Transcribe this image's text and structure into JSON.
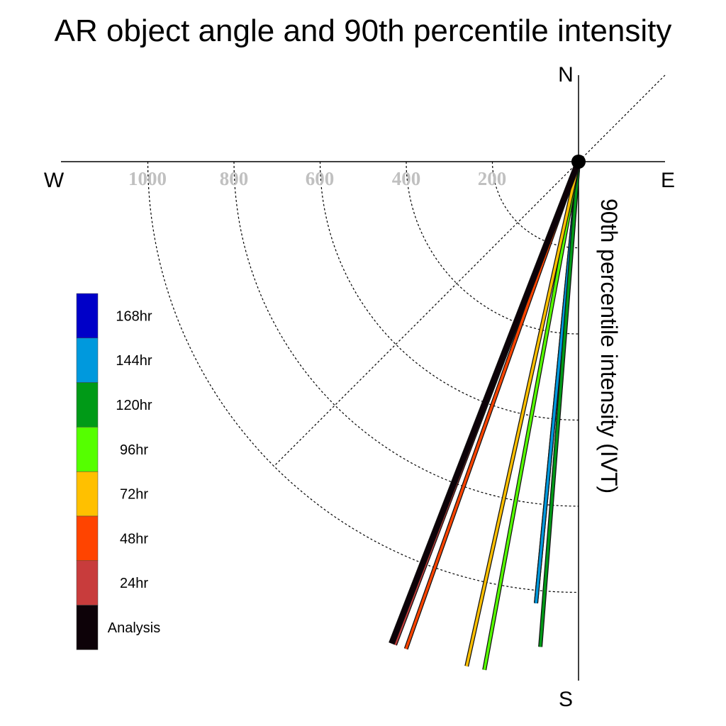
{
  "chart_data": {
    "type": "polar-line",
    "title": "AR object angle and 90th percentile intensity",
    "ylabel": "90th percentile intensity (IVT)",
    "compass": {
      "north": "N",
      "south": "S",
      "east": "E",
      "west": "W"
    },
    "radial_ticks": [
      "200",
      "400",
      "600",
      "800",
      "1000"
    ],
    "radial_tick_values": [
      200,
      400,
      600,
      800,
      1000
    ],
    "radial_max": 1200,
    "grid": true,
    "legend_position": "left",
    "series": [
      {
        "name": "Analysis",
        "color": "#0d0208",
        "angle_deg": 201.2,
        "intensity": 1200
      },
      {
        "name": "24hr",
        "color": "#c83c3c",
        "angle_deg": 200.8,
        "intensity": 1200
      },
      {
        "name": "48hr",
        "color": "#ff4400",
        "angle_deg": 199.5,
        "intensity": 1200
      },
      {
        "name": "72hr",
        "color": "#ffc000",
        "angle_deg": 192.5,
        "intensity": 1200
      },
      {
        "name": "96hr",
        "color": "#55ff00",
        "angle_deg": 190.5,
        "intensity": 1200
      },
      {
        "name": "120hr",
        "color": "#009a17",
        "angle_deg": 184.5,
        "intensity": 1130
      },
      {
        "name": "144hr",
        "color": "#0099dd",
        "angle_deg": 185.5,
        "intensity": 1030
      },
      {
        "name": "168hr",
        "color": "#0000c8",
        "angle_deg": 185.5,
        "intensity": 1030
      }
    ]
  }
}
